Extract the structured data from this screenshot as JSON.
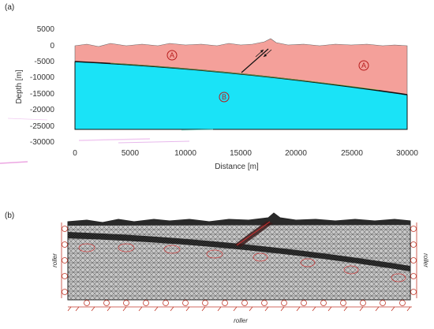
{
  "panel_a": {
    "label": "(a)",
    "y_axis_title": "Depth [m]",
    "x_axis_title": "Distance [m]",
    "y_ticks": [
      "5000",
      "0",
      "-5000",
      "-10000",
      "-15000",
      "-20000",
      "-25000",
      "-30000"
    ],
    "x_ticks": [
      "0",
      "5000",
      "10000",
      "15000",
      "20000",
      "25000",
      "30000"
    ],
    "x_range": [
      0,
      30000
    ],
    "y_range": [
      -30000,
      5000
    ],
    "regions": [
      {
        "marker": "A",
        "color": "#f4a09a",
        "description_color_name": "salmon"
      },
      {
        "marker": "B",
        "color": "#1ae3f7",
        "description_color_name": "cyan"
      }
    ],
    "markers": {
      "a_left": "A",
      "a_right": "A",
      "b": "B"
    }
  },
  "panel_b": {
    "label": "(b)",
    "left_boundary": "roller",
    "right_boundary": "roller",
    "bottom_boundary": "roller"
  }
}
